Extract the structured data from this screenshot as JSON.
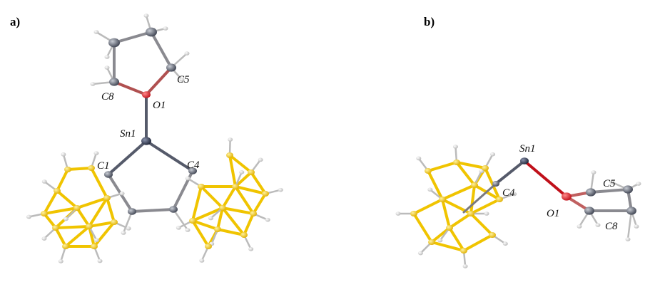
{
  "panels": [
    {
      "label": "a)",
      "atom_labels": [
        "C8",
        "C5",
        "O1",
        "Sn1",
        "C1",
        "C4"
      ]
    },
    {
      "label": "b)",
      "atom_labels": [
        "Sn1",
        "C4",
        "C5",
        "O1",
        "C8"
      ]
    }
  ]
}
